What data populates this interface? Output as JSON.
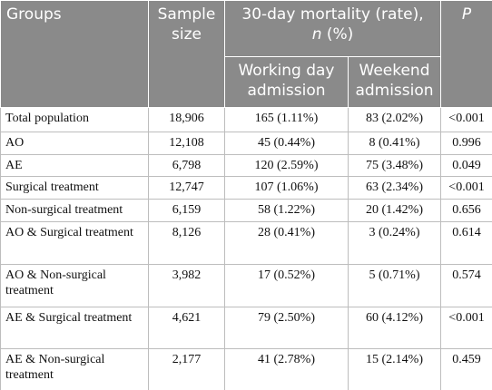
{
  "table": {
    "header": {
      "groups": "Groups",
      "sample_size": "Sample size",
      "mortality": {
        "text": "30-day mortality (rate),",
        "n": "n",
        "unit": "(%)"
      },
      "working_day": "Working day admission",
      "weekend": "Weekend admission",
      "p": "P"
    },
    "rows": [
      [
        "Total population",
        "18,906",
        "165 (1.11%)",
        "83 (2.02%)",
        "<0.001"
      ],
      [
        "AO",
        "12,108",
        "45 (0.44%)",
        "8 (0.41%)",
        "0.996"
      ],
      [
        "AE",
        "6,798",
        "120 (2.59%)",
        "75 (3.48%)",
        "0.049"
      ],
      [
        "Surgical treatment",
        "12,747",
        "107 (1.06%)",
        "63 (2.34%)",
        "<0.001"
      ],
      [
        "Non-surgical treatment",
        "6,159",
        "58 (1.22%)",
        "20 (1.42%)",
        "0.656"
      ],
      [
        "AO & Surgical treatment",
        "8,126",
        "28 (0.41%)",
        "3 (0.24%)",
        "0.614"
      ],
      [
        "AO & Non-surgical treatment",
        "3,982",
        "17 (0.52%)",
        "5 (0.71%)",
        "0.574"
      ],
      [
        "AE & Surgical treatment",
        "4,621",
        "79 (2.50%)",
        "60 (4.12%)",
        "<0.001"
      ],
      [
        "AE & Non-surgical treatment",
        "2,177",
        "41 (2.78%)",
        "15 (2.14%)",
        "0.459"
      ]
    ]
  }
}
